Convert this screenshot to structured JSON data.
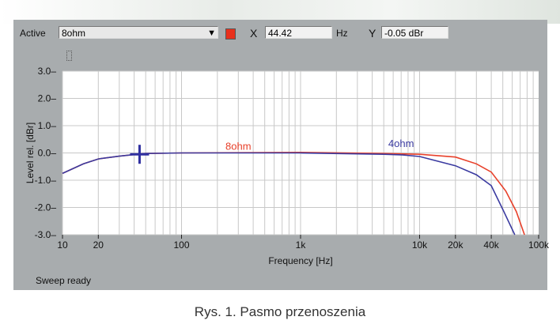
{
  "toolbar": {
    "active_label": "Active",
    "active_value": "8ohm",
    "x_label": "X",
    "x_value": "44.42",
    "x_unit": "Hz",
    "y_label": "Y",
    "y_value": "-0.05 dBr",
    "swatch_color": "#e8301c",
    "dropdown_icon": "triangle-down-icon"
  },
  "status": "Sweep ready",
  "caption": "Rys. 1. Pasmo przenoszenia",
  "chart_data": {
    "type": "line",
    "xlabel": "Frequency [Hz]",
    "ylabel": "Level rel. [dBr]",
    "xscale": "log",
    "xlim": [
      10,
      100000
    ],
    "ylim": [
      -3,
      3
    ],
    "grid": true,
    "xticks": [
      {
        "v": 10,
        "label": "10"
      },
      {
        "v": 20,
        "label": "20"
      },
      {
        "v": 100,
        "label": "100"
      },
      {
        "v": 1000,
        "label": "1k"
      },
      {
        "v": 10000,
        "label": "10k"
      },
      {
        "v": 20000,
        "label": "20k"
      },
      {
        "v": 40000,
        "label": "40k"
      },
      {
        "v": 100000,
        "label": "100k"
      }
    ],
    "yticks": [
      {
        "v": 3,
        "label": "3.0"
      },
      {
        "v": 2,
        "label": "2.0"
      },
      {
        "v": 1,
        "label": "1.0"
      },
      {
        "v": 0,
        "label": "0.0"
      },
      {
        "v": -1,
        "label": "-1.0"
      },
      {
        "v": -2,
        "label": "-2.0"
      },
      {
        "v": -3,
        "label": "-3.0"
      }
    ],
    "cursor": {
      "x": 44.42,
      "y": -0.05
    },
    "series": [
      {
        "name": "8ohm",
        "color": "#e8402a",
        "label_at": [
          300,
          0.12
        ],
        "x": [
          10,
          15,
          20,
          30,
          40,
          50,
          100,
          1000,
          5000,
          10000,
          20000,
          30000,
          40000,
          53000,
          65000,
          76000
        ],
        "y": [
          -0.75,
          -0.4,
          -0.22,
          -0.12,
          -0.06,
          -0.02,
          0,
          0.02,
          -0.02,
          -0.05,
          -0.15,
          -0.4,
          -0.7,
          -1.4,
          -2.15,
          -3.0
        ]
      },
      {
        "name": "4ohm",
        "color": "#3a3aa0",
        "label_at": [
          7000,
          0.22
        ],
        "x": [
          10,
          15,
          20,
          30,
          40,
          50,
          100,
          1000,
          5000,
          7000,
          10000,
          20000,
          30000,
          40000,
          51000,
          63000
        ],
        "y": [
          -0.75,
          -0.4,
          -0.22,
          -0.12,
          -0.06,
          -0.02,
          0,
          0.0,
          -0.05,
          -0.07,
          -0.13,
          -0.47,
          -0.8,
          -1.2,
          -2.15,
          -3.0
        ]
      }
    ]
  }
}
